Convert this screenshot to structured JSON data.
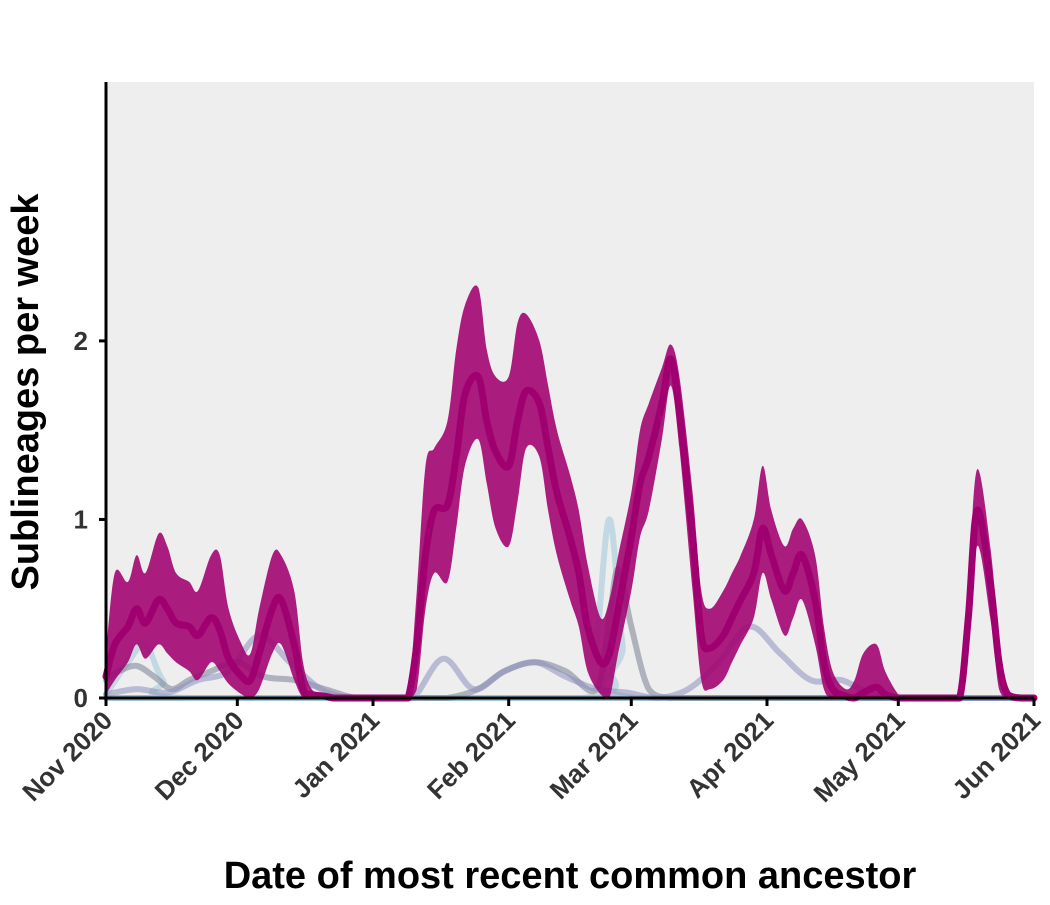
{
  "chart_data": {
    "type": "area",
    "title": "",
    "xlabel": "Date of most recent common ancestor",
    "ylabel": "Sublineages per week",
    "x_ticks": [
      "Nov 2020",
      "Dec 2020",
      "Jan 2021",
      "Feb 2021",
      "Mar 2021",
      "Apr 2021",
      "May 2021",
      "Jun 2021"
    ],
    "x_tick_dates": [
      "2020-11-01",
      "2020-12-01",
      "2021-01-01",
      "2021-02-01",
      "2021-03-01",
      "2021-04-01",
      "2021-05-01",
      "2021-06-01"
    ],
    "y_ticks": [
      "0",
      "1",
      "2"
    ],
    "xlim": [
      "2020-11-01",
      "2021-06-01"
    ],
    "ylim": [
      0,
      3.45
    ],
    "grid": false,
    "panel_background": "#eeeeee",
    "series": [
      {
        "color": "#a0006f",
        "band_color": "#a0006f",
        "x": [
          "2020-11-01",
          "2020-11-03",
          "2020-11-06",
          "2020-11-08",
          "2020-11-10",
          "2020-11-13",
          "2020-11-15",
          "2020-11-17",
          "2020-11-20",
          "2020-11-22",
          "2020-11-25",
          "2020-11-27",
          "2020-11-29",
          "2020-12-02",
          "2020-12-04",
          "2020-12-06",
          "2020-12-09",
          "2020-12-11",
          "2020-12-14",
          "2020-12-16",
          "2020-12-18",
          "2020-12-21",
          "2020-12-23",
          "2020-12-26",
          "2020-12-28",
          "2020-12-31",
          "2021-01-02",
          "2021-01-05",
          "2021-01-07",
          "2021-01-09",
          "2021-01-11",
          "2021-01-13",
          "2021-01-15",
          "2021-01-18",
          "2021-01-20",
          "2021-01-22",
          "2021-01-25",
          "2021-01-27",
          "2021-01-29",
          "2021-02-01",
          "2021-02-03",
          "2021-02-05",
          "2021-02-08",
          "2021-02-10",
          "2021-02-12",
          "2021-02-15",
          "2021-02-17",
          "2021-02-19",
          "2021-02-22",
          "2021-02-24",
          "2021-02-26",
          "2021-03-01",
          "2021-03-03",
          "2021-03-05",
          "2021-03-08",
          "2021-03-10",
          "2021-03-12",
          "2021-03-15",
          "2021-03-17",
          "2021-03-19",
          "2021-03-22",
          "2021-03-24",
          "2021-03-26",
          "2021-03-29",
          "2021-03-31",
          "2021-04-02",
          "2021-04-05",
          "2021-04-07",
          "2021-04-09",
          "2021-04-12",
          "2021-04-14",
          "2021-04-16",
          "2021-04-19",
          "2021-04-21",
          "2021-04-23",
          "2021-04-26",
          "2021-04-28",
          "2021-05-01",
          "2021-05-03",
          "2021-05-05",
          "2021-05-08",
          "2021-05-10",
          "2021-05-12",
          "2021-05-15",
          "2021-05-17",
          "2021-05-19",
          "2021-05-22",
          "2021-05-24",
          "2021-05-26",
          "2021-05-29",
          "2021-06-01"
        ],
        "values": [
          0.12,
          0.3,
          0.4,
          0.5,
          0.42,
          0.55,
          0.5,
          0.42,
          0.4,
          0.35,
          0.45,
          0.38,
          0.22,
          0.12,
          0.1,
          0.25,
          0.5,
          0.55,
          0.3,
          0.05,
          0.02,
          0.01,
          0.0,
          0.0,
          0.0,
          0.0,
          0.0,
          0.0,
          0.0,
          0.0,
          0.3,
          0.8,
          1.05,
          1.08,
          1.35,
          1.7,
          1.8,
          1.55,
          1.38,
          1.3,
          1.55,
          1.72,
          1.65,
          1.4,
          1.15,
          0.9,
          0.7,
          0.4,
          0.2,
          0.25,
          0.5,
          0.9,
          1.2,
          1.35,
          1.65,
          1.9,
          1.6,
          0.9,
          0.35,
          0.28,
          0.35,
          0.45,
          0.55,
          0.7,
          0.95,
          0.8,
          0.6,
          0.7,
          0.8,
          0.55,
          0.2,
          0.05,
          0.01,
          0.0,
          0.03,
          0.06,
          0.02,
          0.0,
          0.0,
          0.0,
          0.0,
          0.0,
          0.0,
          0.0,
          0.45,
          1.05,
          0.65,
          0.2,
          0.02,
          0.0,
          0.0
        ],
        "lower": [
          0.02,
          0.1,
          0.2,
          0.3,
          0.22,
          0.3,
          0.25,
          0.2,
          0.15,
          0.1,
          0.2,
          0.15,
          0.08,
          0.02,
          0.0,
          0.05,
          0.25,
          0.3,
          0.1,
          0.0,
          0.0,
          0.0,
          0.0,
          0.0,
          0.0,
          0.0,
          0.0,
          0.0,
          0.0,
          0.0,
          0.05,
          0.5,
          0.7,
          0.65,
          0.95,
          1.3,
          1.45,
          1.2,
          0.95,
          0.85,
          1.1,
          1.4,
          1.35,
          1.05,
          0.8,
          0.55,
          0.4,
          0.15,
          0.02,
          0.0,
          0.25,
          0.6,
          0.9,
          1.05,
          1.45,
          1.75,
          1.4,
          0.6,
          0.1,
          0.05,
          0.1,
          0.2,
          0.3,
          0.45,
          0.7,
          0.55,
          0.35,
          0.45,
          0.55,
          0.3,
          0.05,
          0.0,
          0.0,
          0.0,
          0.0,
          0.0,
          0.0,
          0.0,
          0.0,
          0.0,
          0.0,
          0.0,
          0.0,
          0.0,
          0.25,
          0.85,
          0.45,
          0.05,
          0.0,
          0.0,
          0.0
        ],
        "upper": [
          0.25,
          0.7,
          0.65,
          0.8,
          0.7,
          0.92,
          0.85,
          0.7,
          0.65,
          0.6,
          0.8,
          0.8,
          0.5,
          0.3,
          0.25,
          0.5,
          0.8,
          0.8,
          0.6,
          0.2,
          0.05,
          0.01,
          0.0,
          0.0,
          0.0,
          0.0,
          0.0,
          0.0,
          0.0,
          0.0,
          0.6,
          1.3,
          1.4,
          1.55,
          1.95,
          2.2,
          2.3,
          1.95,
          1.8,
          1.8,
          2.1,
          2.15,
          2.0,
          1.75,
          1.5,
          1.25,
          1.05,
          0.75,
          0.45,
          0.55,
          0.8,
          1.15,
          1.5,
          1.65,
          1.85,
          1.98,
          1.8,
          1.15,
          0.6,
          0.5,
          0.6,
          0.7,
          0.8,
          1.0,
          1.3,
          1.05,
          0.85,
          0.95,
          1.0,
          0.8,
          0.4,
          0.15,
          0.05,
          0.1,
          0.25,
          0.3,
          0.15,
          0.02,
          0.0,
          0.0,
          0.0,
          0.0,
          0.0,
          0.0,
          0.65,
          1.28,
          0.85,
          0.35,
          0.05,
          0.0,
          0.0
        ]
      },
      {
        "color": "#8e8fc0",
        "x": [
          "2020-11-01",
          "2020-11-08",
          "2020-11-15",
          "2020-11-22",
          "2020-11-29",
          "2020-12-06",
          "2020-12-13",
          "2020-12-20",
          "2020-12-27",
          "2021-01-03",
          "2021-01-10",
          "2021-01-17",
          "2021-01-24",
          "2021-01-31",
          "2021-02-07",
          "2021-02-14",
          "2021-02-21",
          "2021-02-28",
          "2021-03-07",
          "2021-03-14",
          "2021-03-21",
          "2021-03-28",
          "2021-04-04",
          "2021-04-11",
          "2021-04-18",
          "2021-04-25",
          "2021-05-02",
          "2021-05-09",
          "2021-05-16",
          "2021-05-23",
          "2021-06-01"
        ],
        "values": [
          0.02,
          0.05,
          0.03,
          0.1,
          0.15,
          0.35,
          0.2,
          0.05,
          0.0,
          0.0,
          0.0,
          0.22,
          0.05,
          0.15,
          0.2,
          0.12,
          0.05,
          0.03,
          0.0,
          0.05,
          0.2,
          0.4,
          0.25,
          0.1,
          0.1,
          0.02,
          0.0,
          0.0,
          0.0,
          0.0,
          0.0
        ]
      },
      {
        "color": "#7a8296",
        "x": [
          "2020-11-01",
          "2020-11-04",
          "2020-11-08",
          "2020-11-12",
          "2020-11-16",
          "2020-11-20",
          "2020-11-25",
          "2020-12-01",
          "2020-12-07",
          "2020-12-14",
          "2020-12-21",
          "2020-12-28",
          "2021-01-04",
          "2021-01-11",
          "2021-01-18",
          "2021-01-25",
          "2021-01-31",
          "2021-02-07",
          "2021-02-14",
          "2021-02-21",
          "2021-02-24",
          "2021-02-26",
          "2021-03-01",
          "2021-03-05",
          "2021-03-10",
          "2021-03-17",
          "2021-03-24",
          "2021-04-01",
          "2021-04-15",
          "2021-05-01",
          "2021-06-01"
        ],
        "values": [
          0.1,
          0.15,
          0.18,
          0.12,
          0.05,
          0.1,
          0.15,
          0.2,
          0.12,
          0.1,
          0.05,
          0.0,
          0.0,
          0.0,
          0.0,
          0.05,
          0.15,
          0.2,
          0.15,
          0.05,
          0.45,
          0.72,
          0.4,
          0.05,
          0.0,
          0.0,
          0.0,
          0.0,
          0.0,
          0.0,
          0.0
        ]
      },
      {
        "color": "#9ec6d8",
        "x": [
          "2020-11-01",
          "2020-11-06",
          "2020-11-10",
          "2020-11-14",
          "2020-11-20",
          "2021-02-18",
          "2021-02-21",
          "2021-02-24",
          "2021-02-27",
          "2021-03-02",
          "2021-06-01"
        ],
        "values": [
          0.02,
          0.2,
          0.3,
          0.1,
          0.0,
          0.0,
          0.3,
          1.0,
          0.3,
          0.0,
          0.0
        ]
      },
      {
        "color": "#5a8fb0",
        "x": [
          "2020-11-01",
          "2021-06-01"
        ],
        "values": [
          0.0,
          0.0
        ]
      }
    ]
  }
}
